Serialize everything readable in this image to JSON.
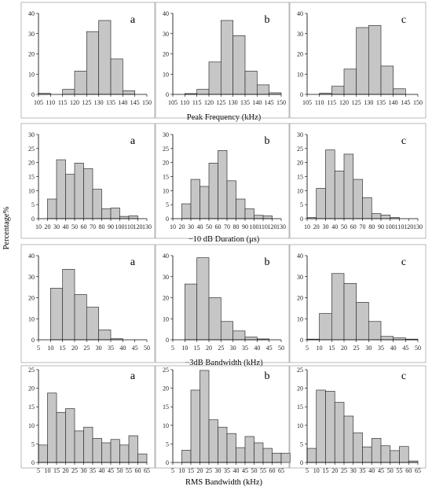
{
  "figure": {
    "ylabel": "Percentage%"
  },
  "chart_data": [
    {
      "type": "bar",
      "row": 0,
      "col": 0,
      "panel": "a",
      "xlabel": "Peak Frequency  (kHz)",
      "xlim": [
        105,
        150
      ],
      "xticks": [
        105,
        110,
        115,
        120,
        125,
        130,
        135,
        140,
        145,
        150
      ],
      "ylim": [
        0,
        40
      ],
      "yticks": [
        0,
        10,
        20,
        30,
        40
      ],
      "bin_width": 5,
      "bins": [
        {
          "start": 105,
          "value": 0.5
        },
        {
          "start": 115,
          "value": 2.5
        },
        {
          "start": 120,
          "value": 11.5
        },
        {
          "start": 125,
          "value": 31
        },
        {
          "start": 130,
          "value": 36.5
        },
        {
          "start": 135,
          "value": 17.5
        },
        {
          "start": 140,
          "value": 1.8
        }
      ]
    },
    {
      "type": "bar",
      "row": 0,
      "col": 1,
      "panel": "b",
      "xlabel": "",
      "xlim": [
        105,
        150
      ],
      "xticks": [
        105,
        110,
        115,
        120,
        125,
        130,
        135,
        140,
        145,
        150
      ],
      "ylim": [
        0,
        40
      ],
      "yticks": [
        0,
        10,
        20,
        30,
        40
      ],
      "bin_width": 5,
      "bins": [
        {
          "start": 110,
          "value": 0.4
        },
        {
          "start": 115,
          "value": 2.5
        },
        {
          "start": 120,
          "value": 16
        },
        {
          "start": 125,
          "value": 36.5
        },
        {
          "start": 130,
          "value": 29
        },
        {
          "start": 135,
          "value": 11.5
        },
        {
          "start": 140,
          "value": 4.7
        },
        {
          "start": 145,
          "value": 0.8
        }
      ]
    },
    {
      "type": "bar",
      "row": 0,
      "col": 2,
      "panel": "c",
      "xlabel": "",
      "xlim": [
        105,
        150
      ],
      "xticks": [
        105,
        110,
        115,
        120,
        125,
        130,
        135,
        140,
        145,
        150
      ],
      "ylim": [
        0,
        40
      ],
      "yticks": [
        0,
        10,
        20,
        30,
        40
      ],
      "bin_width": 5,
      "bins": [
        {
          "start": 110,
          "value": 0.6
        },
        {
          "start": 115,
          "value": 4
        },
        {
          "start": 120,
          "value": 12.5
        },
        {
          "start": 125,
          "value": 33
        },
        {
          "start": 130,
          "value": 34
        },
        {
          "start": 135,
          "value": 14
        },
        {
          "start": 140,
          "value": 2.8
        }
      ]
    },
    {
      "type": "bar",
      "row": 1,
      "col": 0,
      "panel": "a",
      "xlabel": "−10 dB Duration  (μs)",
      "xlim": [
        10,
        130
      ],
      "xticks": [
        10,
        20,
        30,
        40,
        50,
        60,
        70,
        80,
        90,
        100,
        110,
        120,
        130
      ],
      "xtick_labels": [
        "10",
        "20",
        "30",
        "40",
        "50",
        "60",
        "70",
        "80",
        "90",
        "100",
        "110",
        "120",
        "130"
      ],
      "ylim": [
        0,
        30
      ],
      "yticks": [
        0,
        5,
        10,
        15,
        20,
        25,
        30
      ],
      "bin_width": 10,
      "bins": [
        {
          "start": 20,
          "value": 7
        },
        {
          "start": 30,
          "value": 21
        },
        {
          "start": 40,
          "value": 15.8
        },
        {
          "start": 50,
          "value": 19.8
        },
        {
          "start": 60,
          "value": 17.8
        },
        {
          "start": 70,
          "value": 10.5
        },
        {
          "start": 80,
          "value": 3.5
        },
        {
          "start": 90,
          "value": 3.8
        },
        {
          "start": 100,
          "value": 0.8
        },
        {
          "start": 110,
          "value": 1
        }
      ]
    },
    {
      "type": "bar",
      "row": 1,
      "col": 1,
      "panel": "b",
      "xlabel": "",
      "xlim": [
        10,
        130
      ],
      "xticks": [
        10,
        20,
        30,
        40,
        50,
        60,
        70,
        80,
        90,
        100,
        110,
        120,
        130
      ],
      "xtick_labels": [
        "10",
        "20",
        "30",
        "40",
        "50",
        "60",
        "70",
        "80",
        "90",
        "100",
        "110",
        "120",
        "130"
      ],
      "ylim": [
        0,
        30
      ],
      "yticks": [
        0,
        5,
        10,
        15,
        20,
        25,
        30
      ],
      "bin_width": 10,
      "bins": [
        {
          "start": 20,
          "value": 5.3
        },
        {
          "start": 30,
          "value": 14
        },
        {
          "start": 40,
          "value": 11.5
        },
        {
          "start": 50,
          "value": 19.8
        },
        {
          "start": 60,
          "value": 24.3
        },
        {
          "start": 70,
          "value": 13.5
        },
        {
          "start": 80,
          "value": 7
        },
        {
          "start": 90,
          "value": 3.5
        },
        {
          "start": 100,
          "value": 1.2
        },
        {
          "start": 110,
          "value": 1
        }
      ]
    },
    {
      "type": "bar",
      "row": 1,
      "col": 2,
      "panel": "c",
      "xlabel": "",
      "xlim": [
        10,
        130
      ],
      "xticks": [
        10,
        20,
        30,
        40,
        50,
        60,
        70,
        80,
        90,
        100,
        110,
        120,
        130
      ],
      "xtick_labels": [
        "10",
        "20",
        "30",
        "40",
        "50",
        "60",
        "70",
        "80",
        "90",
        "100",
        "110",
        "120",
        "130"
      ],
      "ylim": [
        0,
        30
      ],
      "yticks": [
        0,
        5,
        10,
        15,
        20,
        25,
        30
      ],
      "bin_width": 10,
      "bins": [
        {
          "start": 10,
          "value": 0.4
        },
        {
          "start": 20,
          "value": 10.8
        },
        {
          "start": 30,
          "value": 24.5
        },
        {
          "start": 40,
          "value": 17
        },
        {
          "start": 50,
          "value": 23
        },
        {
          "start": 60,
          "value": 14
        },
        {
          "start": 70,
          "value": 7.5
        },
        {
          "start": 80,
          "value": 1.8
        },
        {
          "start": 90,
          "value": 1.3
        },
        {
          "start": 100,
          "value": 0.4
        }
      ]
    },
    {
      "type": "bar",
      "row": 2,
      "col": 0,
      "panel": "a",
      "xlabel": "−3dB Bandwidth (kHz)",
      "xlim": [
        5,
        50
      ],
      "xticks": [
        5,
        10,
        15,
        20,
        25,
        30,
        35,
        40,
        45,
        50
      ],
      "ylim": [
        0,
        40
      ],
      "yticks": [
        0,
        10,
        20,
        30,
        40
      ],
      "bin_width": 5,
      "bins": [
        {
          "start": 10,
          "value": 24.5
        },
        {
          "start": 15,
          "value": 33.5
        },
        {
          "start": 20,
          "value": 21.5
        },
        {
          "start": 25,
          "value": 15.5
        },
        {
          "start": 30,
          "value": 4.7
        },
        {
          "start": 35,
          "value": 0.5
        }
      ]
    },
    {
      "type": "bar",
      "row": 2,
      "col": 1,
      "panel": "b",
      "xlabel": "",
      "xlim": [
        5,
        50
      ],
      "xticks": [
        5,
        10,
        15,
        20,
        25,
        30,
        35,
        40,
        45,
        50
      ],
      "ylim": [
        0,
        40
      ],
      "yticks": [
        0,
        10,
        20,
        30,
        40
      ],
      "bin_width": 5,
      "bins": [
        {
          "start": 10,
          "value": 26.5
        },
        {
          "start": 15,
          "value": 39
        },
        {
          "start": 20,
          "value": 20
        },
        {
          "start": 25,
          "value": 8.7
        },
        {
          "start": 30,
          "value": 4.2
        },
        {
          "start": 35,
          "value": 1.3
        },
        {
          "start": 40,
          "value": 0.4
        }
      ]
    },
    {
      "type": "bar",
      "row": 2,
      "col": 2,
      "panel": "c",
      "xlabel": "",
      "xlim": [
        5,
        50
      ],
      "xticks": [
        5,
        10,
        15,
        20,
        25,
        30,
        35,
        40,
        45,
        50
      ],
      "ylim": [
        0,
        40
      ],
      "yticks": [
        0,
        10,
        20,
        30,
        40
      ],
      "bin_width": 5,
      "bins": [
        {
          "start": 5,
          "value": 0.3
        },
        {
          "start": 10,
          "value": 12.5
        },
        {
          "start": 15,
          "value": 31.5
        },
        {
          "start": 20,
          "value": 26.8
        },
        {
          "start": 25,
          "value": 17.8
        },
        {
          "start": 30,
          "value": 8.7
        },
        {
          "start": 35,
          "value": 1.6
        },
        {
          "start": 40,
          "value": 0.9
        },
        {
          "start": 45,
          "value": 0.3
        }
      ]
    },
    {
      "type": "bar",
      "row": 3,
      "col": 0,
      "panel": "a",
      "xlabel": "RMS Bandwidth (kHz)",
      "xlim": [
        5,
        65
      ],
      "xticks": [
        5,
        10,
        15,
        20,
        25,
        30,
        35,
        40,
        45,
        50,
        55,
        60,
        65
      ],
      "ylim": [
        0,
        25
      ],
      "yticks": [
        0,
        5,
        10,
        15,
        20,
        25
      ],
      "bin_width": 5,
      "bins": [
        {
          "start": 5,
          "value": 4.7
        },
        {
          "start": 10,
          "value": 18.7
        },
        {
          "start": 15,
          "value": 13.5
        },
        {
          "start": 20,
          "value": 14.5
        },
        {
          "start": 25,
          "value": 8.5
        },
        {
          "start": 30,
          "value": 9.5
        },
        {
          "start": 35,
          "value": 6.5
        },
        {
          "start": 40,
          "value": 5.3
        },
        {
          "start": 45,
          "value": 6.2
        },
        {
          "start": 50,
          "value": 4.7
        },
        {
          "start": 55,
          "value": 7.2
        },
        {
          "start": 60,
          "value": 2.3
        }
      ]
    },
    {
      "type": "bar",
      "row": 3,
      "col": 1,
      "panel": "b",
      "xlabel": "",
      "xlim": [
        5,
        65
      ],
      "xticks": [
        5,
        10,
        15,
        20,
        25,
        30,
        35,
        40,
        45,
        50,
        55,
        60,
        65
      ],
      "ylim": [
        0,
        25
      ],
      "yticks": [
        0,
        5,
        10,
        15,
        20,
        25
      ],
      "bin_width": 5,
      "bins": [
        {
          "start": 10,
          "value": 3.3
        },
        {
          "start": 15,
          "value": 19.5
        },
        {
          "start": 20,
          "value": 24.8
        },
        {
          "start": 25,
          "value": 11.5
        },
        {
          "start": 30,
          "value": 9.5
        },
        {
          "start": 35,
          "value": 7.8
        },
        {
          "start": 40,
          "value": 4
        },
        {
          "start": 45,
          "value": 7
        },
        {
          "start": 50,
          "value": 5.3
        },
        {
          "start": 55,
          "value": 3.8
        },
        {
          "start": 60,
          "value": 2.5
        },
        {
          "start": 65,
          "value": 2.5
        }
      ]
    },
    {
      "type": "bar",
      "row": 3,
      "col": 2,
      "panel": "c",
      "xlabel": "",
      "xlim": [
        5,
        65
      ],
      "xticks": [
        5,
        10,
        15,
        20,
        25,
        30,
        35,
        40,
        45,
        50,
        55,
        60,
        65
      ],
      "ylim": [
        0,
        25
      ],
      "yticks": [
        0,
        5,
        10,
        15,
        20,
        25
      ],
      "bin_width": 5,
      "bins": [
        {
          "start": 5,
          "value": 3.8
        },
        {
          "start": 10,
          "value": 19.5
        },
        {
          "start": 15,
          "value": 19.2
        },
        {
          "start": 20,
          "value": 16.2
        },
        {
          "start": 25,
          "value": 12.5
        },
        {
          "start": 30,
          "value": 8
        },
        {
          "start": 35,
          "value": 4.2
        },
        {
          "start": 40,
          "value": 6.5
        },
        {
          "start": 45,
          "value": 4.5
        },
        {
          "start": 50,
          "value": 3.2
        },
        {
          "start": 55,
          "value": 4.3
        },
        {
          "start": 60,
          "value": 0.4
        }
      ]
    }
  ]
}
